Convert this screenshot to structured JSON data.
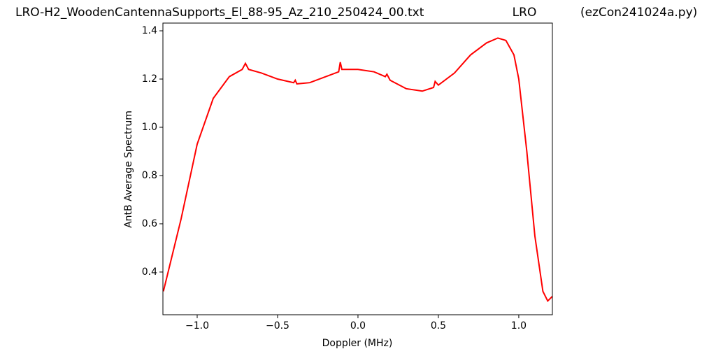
{
  "chart_data": {
    "type": "line",
    "titles": [
      "LRO-H2_WoodenCantennaSupports_El_88-95_Az_210_250424_00.txt",
      "LRO",
      "(ezCon241024a.py)"
    ],
    "x_label": "Doppler (MHz)",
    "y_label": "AntB Average Spectrum",
    "x": [
      -1.21,
      -1.1,
      -1.0,
      -0.9,
      -0.8,
      -0.72,
      -0.7,
      -0.68,
      -0.6,
      -0.5,
      -0.4,
      -0.39,
      -0.38,
      -0.3,
      -0.2,
      -0.12,
      -0.11,
      -0.1,
      0,
      0.1,
      0.17,
      0.18,
      0.2,
      0.3,
      0.4,
      0.47,
      0.48,
      0.5,
      0.6,
      0.7,
      0.8,
      0.87,
      0.92,
      0.97,
      1.0,
      1.05,
      1.1,
      1.15,
      1.18,
      1.21
    ],
    "series": [
      {
        "name": "AntB",
        "color": "#ff0000",
        "values": [
          0.32,
          0.62,
          0.93,
          1.12,
          1.21,
          1.24,
          1.265,
          1.24,
          1.225,
          1.2,
          1.185,
          1.195,
          1.18,
          1.185,
          1.21,
          1.23,
          1.27,
          1.24,
          1.24,
          1.23,
          1.21,
          1.22,
          1.195,
          1.16,
          1.15,
          1.165,
          1.19,
          1.175,
          1.225,
          1.3,
          1.35,
          1.37,
          1.36,
          1.3,
          1.2,
          0.9,
          0.55,
          0.32,
          0.28,
          0.3
        ]
      }
    ],
    "xlim": [
      -1.213,
      1.209
    ],
    "ylim": [
      0.223,
      1.432
    ],
    "xticks": [
      {
        "value": -1,
        "label": "−1.0"
      },
      {
        "value": -0.5,
        "label": "−0.5"
      },
      {
        "value": 0,
        "label": "0.0"
      },
      0.5,
      {
        "value": 1,
        "label": "1.0"
      }
    ],
    "yticks": [
      0.4,
      0.6,
      0.8,
      {
        "value": 1,
        "label": "1.0"
      },
      1.2,
      1.4
    ]
  }
}
